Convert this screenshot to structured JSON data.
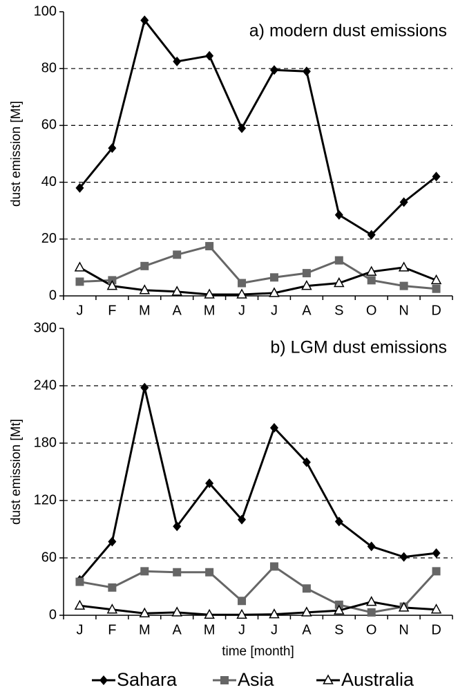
{
  "chart_data": [
    {
      "type": "line",
      "title": "a) modern dust emissions",
      "y_label": "dust emission [Mt]",
      "categories": [
        "J",
        "F",
        "M",
        "A",
        "M",
        "J",
        "J",
        "A",
        "S",
        "O",
        "N",
        "D"
      ],
      "ylim": [
        0,
        100
      ],
      "yticks": [
        0,
        20,
        40,
        60,
        80,
        100
      ],
      "grid": true,
      "series": [
        {
          "color": "#000000",
          "marker": "diamond",
          "values": [
            38,
            52,
            97,
            82.5,
            84.5,
            59,
            79.5,
            79,
            28.5,
            21.5,
            33,
            42
          ]
        },
        {
          "color": "#666666",
          "marker": "square",
          "values": [
            5,
            5.5,
            10.5,
            14.5,
            17.5,
            4.5,
            6.5,
            8,
            12.5,
            5.5,
            3.5,
            2.5
          ]
        },
        {
          "color": "#000000",
          "marker": "triangle",
          "values": [
            10,
            3.5,
            2,
            1.5,
            0.5,
            0.5,
            1,
            3.5,
            4.5,
            8.5,
            10,
            5.5
          ]
        }
      ]
    },
    {
      "type": "line",
      "title": "b) LGM dust emissions",
      "y_label": "dust emission [Mt]",
      "x_label": "time [month]",
      "categories": [
        "J",
        "F",
        "M",
        "A",
        "M",
        "J",
        "J",
        "A",
        "S",
        "O",
        "N",
        "D"
      ],
      "ylim": [
        0,
        300
      ],
      "yticks": [
        0,
        60,
        120,
        180,
        240,
        300
      ],
      "grid": true,
      "legend": "bottom",
      "series": [
        {
          "name": "Sahara",
          "color": "#000000",
          "marker": "diamond",
          "values": [
            37,
            77,
            238,
            93,
            138,
            100,
            196,
            160,
            98,
            72,
            61,
            65
          ]
        },
        {
          "name": "Asia",
          "color": "#666666",
          "marker": "square",
          "values": [
            35,
            29,
            46,
            45,
            45,
            15,
            51,
            28,
            11,
            3,
            9,
            46
          ]
        },
        {
          "name": "Australia",
          "color": "#000000",
          "marker": "triangle",
          "values": [
            10,
            6,
            2,
            3,
            0.5,
            0.5,
            1,
            3,
            5,
            14,
            8,
            6
          ]
        }
      ]
    }
  ]
}
